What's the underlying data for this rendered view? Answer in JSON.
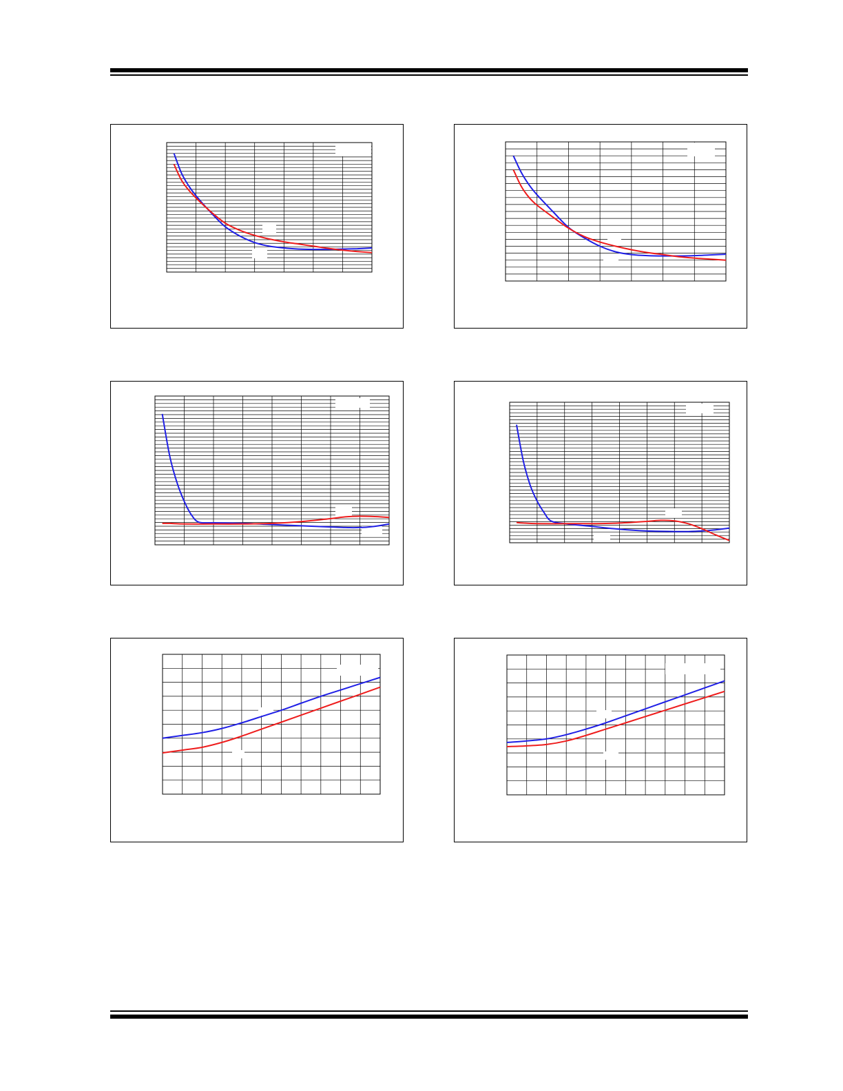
{
  "page": {
    "rules": [
      "top-double-rule",
      "bottom-double-rule"
    ]
  },
  "colors": {
    "series_a": "#1f1fe6",
    "series_b": "#ee1c1c",
    "grid": "#000000"
  },
  "chart_data": [
    {
      "type": "line",
      "title": "",
      "xlabel": "",
      "ylabel": "",
      "xlim": [
        0,
        7
      ],
      "ylim": [
        0,
        18
      ],
      "grid": true,
      "series": [
        {
          "color": "#1f1fe6",
          "x": [
            0.25,
            0.5,
            0.75,
            1,
            1.5,
            2,
            2.5,
            3,
            3.5,
            4,
            4.5,
            5,
            5.5,
            6,
            6.5,
            7
          ],
          "y": [
            16.5,
            13.8,
            12.0,
            10.6,
            8.3,
            6.3,
            5.0,
            4.1,
            3.6,
            3.35,
            3.2,
            3.15,
            3.15,
            3.2,
            3.25,
            3.35
          ]
        },
        {
          "color": "#ee1c1c",
          "x": [
            0.25,
            0.5,
            0.75,
            1,
            1.5,
            2,
            2.5,
            3,
            3.5,
            4,
            4.5,
            5,
            5.5,
            6,
            6.5,
            7
          ],
          "y": [
            15.0,
            12.8,
            11.4,
            10.3,
            8.4,
            6.8,
            5.8,
            5.1,
            4.6,
            4.2,
            3.9,
            3.6,
            3.3,
            3.05,
            2.85,
            2.7
          ]
        }
      ]
    },
    {
      "type": "line",
      "title": "",
      "xlabel": "",
      "ylabel": "",
      "xlim": [
        0,
        7
      ],
      "ylim": [
        0,
        20
      ],
      "grid": true,
      "series": [
        {
          "color": "#1f1fe6",
          "x": [
            0.25,
            0.5,
            0.75,
            1,
            1.5,
            2,
            2.5,
            3,
            3.5,
            4,
            4.5,
            5,
            5.5,
            6,
            6.5,
            7
          ],
          "y": [
            18.0,
            15.6,
            13.8,
            12.4,
            10.0,
            7.7,
            6.2,
            5.0,
            4.2,
            3.8,
            3.65,
            3.6,
            3.6,
            3.65,
            3.75,
            3.85
          ]
        },
        {
          "color": "#ee1c1c",
          "x": [
            0.25,
            0.5,
            0.75,
            1,
            1.5,
            2,
            2.5,
            3,
            3.5,
            4,
            4.5,
            5,
            5.5,
            6,
            6.5,
            7
          ],
          "y": [
            16.0,
            13.6,
            12.0,
            10.9,
            9.2,
            7.6,
            6.4,
            5.6,
            5.0,
            4.5,
            4.1,
            3.8,
            3.5,
            3.3,
            3.15,
            3.0
          ]
        }
      ]
    },
    {
      "type": "line",
      "title": "",
      "xlabel": "",
      "ylabel": "",
      "xlim": [
        0,
        8
      ],
      "ylim": [
        0,
        25
      ],
      "grid": true,
      "series": [
        {
          "color": "#1f1fe6",
          "x": [
            0.25,
            0.5,
            0.75,
            1,
            1.25,
            1.5,
            2,
            3,
            4,
            5,
            6,
            6.5,
            7,
            7.5,
            8
          ],
          "y": [
            22.0,
            15.0,
            10.5,
            7.3,
            5.0,
            3.8,
            3.7,
            3.6,
            3.4,
            3.2,
            3.0,
            2.9,
            2.9,
            3.1,
            3.5
          ]
        },
        {
          "color": "#ee1c1c",
          "x": [
            0.25,
            0.5,
            1,
            2,
            3,
            4,
            5,
            6,
            6.5,
            7,
            7.5,
            8
          ],
          "y": [
            3.6,
            3.6,
            3.5,
            3.5,
            3.5,
            3.6,
            3.9,
            4.4,
            4.7,
            4.8,
            4.75,
            4.6
          ]
        }
      ]
    },
    {
      "type": "line",
      "title": "",
      "xlabel": "",
      "ylabel": "",
      "xlim": [
        0,
        8
      ],
      "ylim": [
        0,
        25
      ],
      "grid": true,
      "series": [
        {
          "color": "#1f1fe6",
          "x": [
            0.25,
            0.5,
            0.75,
            1,
            1.25,
            1.5,
            2,
            3,
            4,
            5,
            6,
            6.5,
            7,
            7.5,
            8
          ],
          "y": [
            21.0,
            14.5,
            10.2,
            7.4,
            5.4,
            3.9,
            3.4,
            2.9,
            2.4,
            2.1,
            2.0,
            2.0,
            2.1,
            2.3,
            2.6
          ]
        },
        {
          "color": "#ee1c1c",
          "x": [
            0.25,
            0.5,
            1,
            2,
            3,
            4,
            5,
            5.5,
            6,
            6.5,
            7,
            7.5,
            8
          ],
          "y": [
            3.6,
            3.5,
            3.4,
            3.4,
            3.4,
            3.5,
            3.8,
            4.0,
            3.9,
            3.4,
            2.5,
            1.4,
            0.4
          ]
        }
      ]
    },
    {
      "type": "line",
      "title": "",
      "xlabel": "",
      "ylabel": "",
      "xlim": [
        0,
        11
      ],
      "ylim": [
        0,
        10
      ],
      "grid": true,
      "series": [
        {
          "color": "#1f1fe6",
          "x": [
            0,
            1,
            2,
            3,
            4,
            5,
            6,
            7,
            8,
            9,
            10,
            11
          ],
          "y": [
            4.0,
            4.2,
            4.4,
            4.7,
            5.1,
            5.55,
            6.0,
            6.5,
            7.0,
            7.45,
            7.9,
            8.35
          ]
        },
        {
          "color": "#ee1c1c",
          "x": [
            0,
            1,
            2,
            3,
            4,
            5,
            6,
            7,
            8,
            9,
            10,
            11
          ],
          "y": [
            2.95,
            3.15,
            3.35,
            3.7,
            4.15,
            4.65,
            5.15,
            5.65,
            6.15,
            6.65,
            7.15,
            7.65
          ]
        }
      ]
    },
    {
      "type": "line",
      "title": "",
      "xlabel": "",
      "ylabel": "",
      "xlim": [
        0,
        11
      ],
      "ylim": [
        0,
        10
      ],
      "grid": true,
      "series": [
        {
          "color": "#1f1fe6",
          "x": [
            0,
            1,
            2,
            3,
            4,
            5,
            6,
            7,
            8,
            9,
            10,
            11
          ],
          "y": [
            3.75,
            3.85,
            4.0,
            4.3,
            4.7,
            5.15,
            5.65,
            6.15,
            6.65,
            7.15,
            7.65,
            8.15
          ]
        },
        {
          "color": "#ee1c1c",
          "x": [
            0,
            1,
            2,
            3,
            4,
            5,
            6,
            7,
            8,
            9,
            10,
            11
          ],
          "y": [
            3.45,
            3.5,
            3.6,
            3.85,
            4.25,
            4.7,
            5.15,
            5.6,
            6.05,
            6.5,
            6.95,
            7.4
          ]
        }
      ]
    }
  ]
}
